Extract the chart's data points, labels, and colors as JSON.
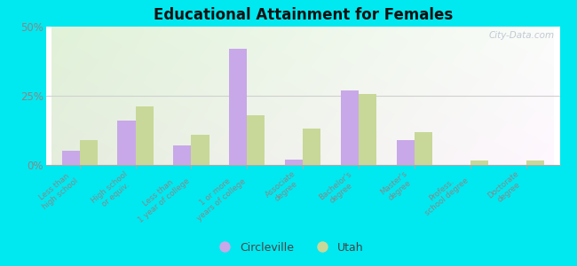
{
  "title": "Educational Attainment for Females",
  "categories": [
    "Less than\nhigh school",
    "High school\nor equiv.",
    "Less than\n1 year of college",
    "1 or more\nyears of college",
    "Associate\ndegree",
    "Bachelor's\ndegree",
    "Master's\ndegree",
    "Profess.\nschool degree",
    "Doctorate\ndegree"
  ],
  "circleville": [
    5.0,
    16.0,
    7.0,
    42.0,
    2.0,
    27.0,
    9.0,
    0.0,
    0.0
  ],
  "utah": [
    9.0,
    21.0,
    11.0,
    18.0,
    13.0,
    25.5,
    12.0,
    1.5,
    1.5
  ],
  "ylim": [
    0,
    50
  ],
  "yticks": [
    0,
    25,
    50
  ],
  "ytick_labels": [
    "0%",
    "25%",
    "50%"
  ],
  "circleville_color": "#c8a8e8",
  "utah_color": "#c8d898",
  "bg_color": "#e8f5e0",
  "outer_bg": "#00e8f0",
  "bar_width": 0.32,
  "legend_circleville": "Circleville",
  "legend_utah": "Utah",
  "watermark": "City-Data.com",
  "grid_color": "#d0d0d0",
  "spine_color": "#aaaaaa",
  "tick_label_color": "#888888",
  "title_color": "#111111"
}
